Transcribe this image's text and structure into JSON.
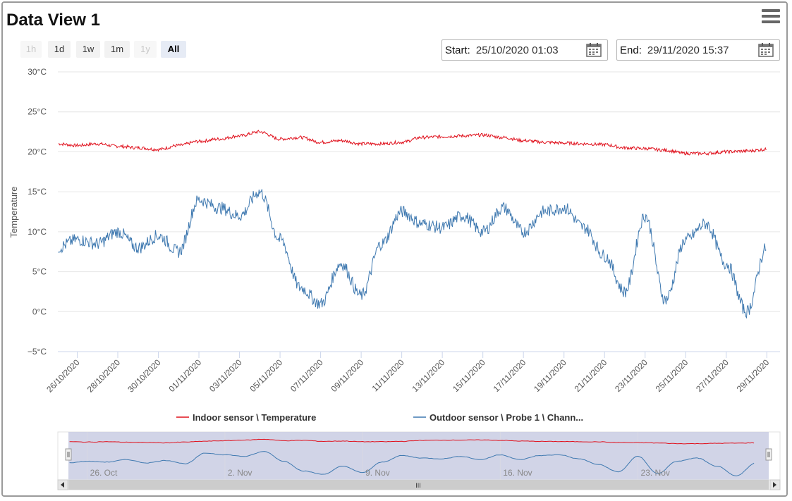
{
  "title": "Data View 1",
  "menu_icon": "hamburger-menu-icon",
  "range_selector": {
    "buttons": [
      {
        "label": "1h",
        "state": "disabled"
      },
      {
        "label": "1d",
        "state": "enabled"
      },
      {
        "label": "1w",
        "state": "enabled"
      },
      {
        "label": "1m",
        "state": "enabled"
      },
      {
        "label": "1y",
        "state": "disabled"
      },
      {
        "label": "All",
        "state": "active"
      }
    ]
  },
  "start": {
    "label": "Start:",
    "value": "25/10/2020 01:03",
    "icon": "calendar-icon"
  },
  "end": {
    "label": "End:",
    "value": "29/11/2020 15:37",
    "icon": "calendar-icon"
  },
  "colors": {
    "indoor": "#e0101c",
    "outdoor": "#3f79b0",
    "navigator_mask": "#c9cde3",
    "grid": "#e6e6e6"
  },
  "chart_data": {
    "type": "line",
    "ylabel": "Temperature",
    "y_unit": "°C",
    "ylim": [
      -5,
      30
    ],
    "y_ticks": [
      "30°C",
      "25°C",
      "20°C",
      "15°C",
      "10°C",
      "5°C",
      "0°C",
      "−5°C"
    ],
    "xlim": [
      "25/10/2020 01:03",
      "29/11/2020 15:37"
    ],
    "x_ticks": [
      "26/10/2020",
      "28/10/2020",
      "30/10/2020",
      "01/11/2020",
      "03/11/2020",
      "05/11/2020",
      "07/11/2020",
      "09/11/2020",
      "11/11/2020",
      "13/11/2020",
      "15/11/2020",
      "17/11/2020",
      "19/11/2020",
      "21/11/2020",
      "23/11/2020",
      "25/11/2020",
      "27/11/2020",
      "29/11/2020"
    ],
    "legend_position": "bottom",
    "grid": true,
    "x": [
      "25/10/2020",
      "26/10/2020",
      "27/10/2020",
      "28/10/2020",
      "29/10/2020",
      "30/10/2020",
      "31/10/2020",
      "01/11/2020",
      "02/11/2020",
      "03/11/2020",
      "04/11/2020",
      "05/11/2020",
      "06/11/2020",
      "07/11/2020",
      "08/11/2020",
      "09/11/2020",
      "10/11/2020",
      "11/11/2020",
      "12/11/2020",
      "13/11/2020",
      "14/11/2020",
      "15/11/2020",
      "16/11/2020",
      "17/11/2020",
      "18/11/2020",
      "19/11/2020",
      "20/11/2020",
      "21/11/2020",
      "22/11/2020",
      "23/11/2020",
      "24/11/2020",
      "25/11/2020",
      "26/11/2020",
      "27/11/2020",
      "28/11/2020",
      "29/11/2020"
    ],
    "series": [
      {
        "name": "Indoor sensor \\ Temperature",
        "values": [
          21.0,
          20.8,
          21.0,
          20.7,
          20.5,
          20.3,
          20.8,
          21.3,
          21.6,
          22.0,
          22.5,
          21.6,
          21.8,
          21.2,
          21.4,
          21.0,
          21.0,
          21.2,
          21.8,
          21.9,
          22.0,
          22.1,
          21.8,
          21.4,
          21.2,
          21.1,
          21.0,
          20.9,
          20.5,
          20.4,
          20.2,
          19.8,
          19.8,
          20.0,
          20.1,
          20.3
        ]
      },
      {
        "name": "Outdoor sensor \\ Probe 1 \\ Chann...",
        "values": [
          8.0,
          9.0,
          8.5,
          10.0,
          8.0,
          9.5,
          7.5,
          14.0,
          13.0,
          12.0,
          15.0,
          9.0,
          3.0,
          1.0,
          6.0,
          2.0,
          8.5,
          12.5,
          11.0,
          10.5,
          12.0,
          10.0,
          13.0,
          10.0,
          12.5,
          13.0,
          10.5,
          7.0,
          2.5,
          12.0,
          1.5,
          9.0,
          11.0,
          6.0,
          0.0,
          8.0
        ]
      }
    ]
  },
  "navigator": {
    "x_labels": [
      "26. Oct",
      "2. Nov",
      "9. Nov",
      "16. Nov",
      "23. Nov"
    ],
    "scroll_thumb": "III"
  }
}
